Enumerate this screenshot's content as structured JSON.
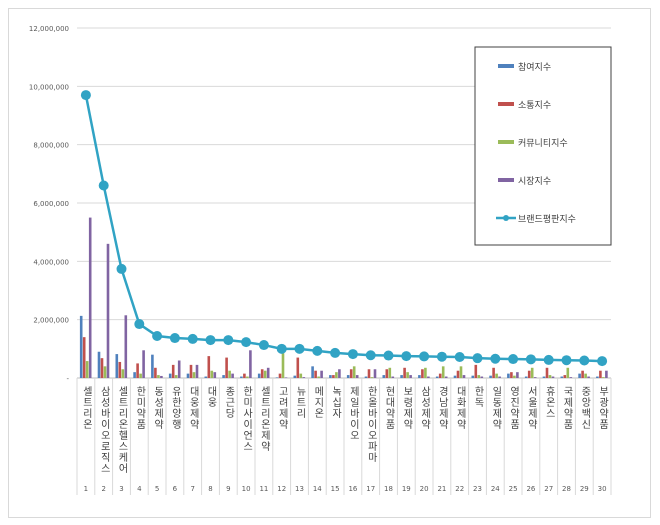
{
  "chart_data": {
    "type": "bar",
    "title": "",
    "xlabel": "",
    "ylabel": "",
    "ylim": [
      0,
      12000000
    ],
    "yticks": [
      "-",
      "2,000,000",
      "4,000,000",
      "6,000,000",
      "8,000,000",
      "10,000,000",
      "12,000,000"
    ],
    "grid": true,
    "legend_position": "right-top",
    "categories": [
      "셀트리온",
      "삼성바이오로직스",
      "셀트리온헬스케어",
      "한미약품",
      "동성제약",
      "유한양행",
      "대웅제약",
      "대웅",
      "종근당",
      "한미사이언스",
      "셀트리온제약",
      "고려제약",
      "뉴트리",
      "메지온",
      "녹십자",
      "제일바이오",
      "한올바이오파마",
      "현대약품",
      "보령제약",
      "삼성제약",
      "경남제약",
      "대화제약",
      "한독",
      "일동제약",
      "영진약품",
      "서울제약",
      "휴온스",
      "국제약품",
      "중앙백신",
      "부광약품"
    ],
    "ranks": [
      "1",
      "2",
      "3",
      "4",
      "5",
      "6",
      "7",
      "8",
      "9",
      "10",
      "11",
      "12",
      "13",
      "14",
      "15",
      "16",
      "17",
      "18",
      "19",
      "20",
      "21",
      "22",
      "23",
      "24",
      "25",
      "26",
      "27",
      "28",
      "29",
      "30"
    ],
    "series": [
      {
        "name": "참여지수",
        "type": "bar",
        "color": "#4f81bd",
        "values": [
          2130000,
          900000,
          820000,
          200000,
          800000,
          150000,
          150000,
          50000,
          100000,
          50000,
          150000,
          20000,
          80000,
          400000,
          100000,
          100000,
          50000,
          100000,
          100000,
          100000,
          50000,
          80000,
          80000,
          80000,
          150000,
          50000,
          50000,
          50000,
          150000,
          50000
        ]
      },
      {
        "name": "소통지수",
        "type": "bar",
        "color": "#c0504d",
        "values": [
          1400000,
          680000,
          550000,
          500000,
          350000,
          450000,
          450000,
          750000,
          700000,
          150000,
          300000,
          150000,
          700000,
          250000,
          100000,
          300000,
          300000,
          300000,
          350000,
          300000,
          150000,
          250000,
          450000,
          350000,
          200000,
          250000,
          350000,
          100000,
          250000,
          250000
        ]
      },
      {
        "name": "커뮤니티지수",
        "type": "bar",
        "color": "#9bbb59",
        "values": [
          580000,
          400000,
          300000,
          150000,
          100000,
          100000,
          200000,
          250000,
          250000,
          50000,
          250000,
          850000,
          150000,
          50000,
          200000,
          400000,
          30000,
          350000,
          200000,
          350000,
          400000,
          400000,
          100000,
          150000,
          80000,
          350000,
          100000,
          350000,
          150000,
          30000
        ]
      },
      {
        "name": "시장지수",
        "type": "bar",
        "color": "#8064a2",
        "values": [
          5500000,
          4600000,
          2150000,
          950000,
          70000,
          600000,
          450000,
          200000,
          150000,
          950000,
          350000,
          20000,
          30000,
          250000,
          300000,
          100000,
          300000,
          50000,
          100000,
          50000,
          50000,
          100000,
          50000,
          50000,
          200000,
          30000,
          50000,
          30000,
          50000,
          250000
        ]
      },
      {
        "name": "브랜드평판지수",
        "type": "line",
        "color": "#31a3c4",
        "values": [
          9700000,
          6600000,
          3740000,
          1850000,
          1440000,
          1370000,
          1340000,
          1300000,
          1300000,
          1230000,
          1130000,
          1000000,
          1000000,
          930000,
          860000,
          820000,
          780000,
          770000,
          750000,
          740000,
          730000,
          720000,
          680000,
          660000,
          650000,
          640000,
          620000,
          610000,
          600000,
          580000
        ]
      }
    ]
  }
}
